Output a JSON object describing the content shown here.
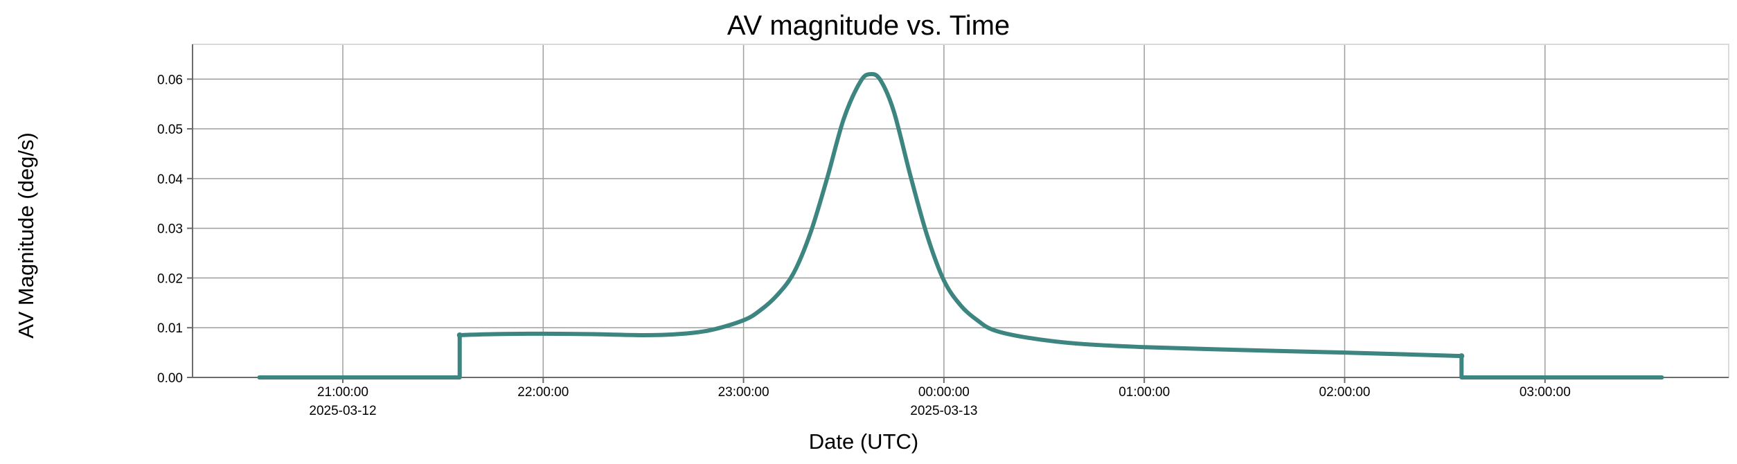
{
  "chart_data": {
    "type": "line",
    "title": "AV magnitude vs. Time",
    "xlabel": "Date (UTC)",
    "ylabel": "AV Magnitude (deg/s)",
    "xlim": [
      "2025-03-12T20:15:00",
      "2025-03-13T03:55:00"
    ],
    "ylim": [
      0,
      0.067
    ],
    "grid": true,
    "legend": "none",
    "x_ticks": [
      {
        "value": "2025-03-12T21:00:00",
        "label": "21:00:00",
        "sublabel": "2025-03-12"
      },
      {
        "value": "2025-03-12T22:00:00",
        "label": "22:00:00",
        "sublabel": ""
      },
      {
        "value": "2025-03-12T23:00:00",
        "label": "23:00:00",
        "sublabel": ""
      },
      {
        "value": "2025-03-13T00:00:00",
        "label": "00:00:00",
        "sublabel": "2025-03-13"
      },
      {
        "value": "2025-03-13T01:00:00",
        "label": "01:00:00",
        "sublabel": ""
      },
      {
        "value": "2025-03-13T02:00:00",
        "label": "02:00:00",
        "sublabel": ""
      },
      {
        "value": "2025-03-13T03:00:00",
        "label": "03:00:00",
        "sublabel": ""
      }
    ],
    "y_ticks": [
      {
        "value": 0.0,
        "label": "0.00"
      },
      {
        "value": 0.01,
        "label": "0.01"
      },
      {
        "value": 0.02,
        "label": "0.02"
      },
      {
        "value": 0.03,
        "label": "0.03"
      },
      {
        "value": 0.04,
        "label": "0.04"
      },
      {
        "value": 0.05,
        "label": "0.05"
      },
      {
        "value": 0.06,
        "label": "0.06"
      }
    ],
    "series": [
      {
        "color": "#3d8580",
        "points": [
          {
            "x": "2025-03-12T20:35:00",
            "y": 0.0
          },
          {
            "x": "2025-03-12T21:35:00",
            "y": 0.0
          },
          {
            "x": "2025-03-12T21:35:00",
            "y": 0.0085
          },
          {
            "x": "2025-03-12T21:45:00",
            "y": 0.0087
          },
          {
            "x": "2025-03-12T22:00:00",
            "y": 0.0088
          },
          {
            "x": "2025-03-12T22:15:00",
            "y": 0.0087
          },
          {
            "x": "2025-03-12T22:30:00",
            "y": 0.0085
          },
          {
            "x": "2025-03-12T22:40:00",
            "y": 0.0087
          },
          {
            "x": "2025-03-12T22:50:00",
            "y": 0.0095
          },
          {
            "x": "2025-03-12T23:00:00",
            "y": 0.0115
          },
          {
            "x": "2025-03-12T23:05:00",
            "y": 0.0135
          },
          {
            "x": "2025-03-12T23:10:00",
            "y": 0.0165
          },
          {
            "x": "2025-03-12T23:15:00",
            "y": 0.021
          },
          {
            "x": "2025-03-12T23:20:00",
            "y": 0.029
          },
          {
            "x": "2025-03-12T23:25:00",
            "y": 0.04
          },
          {
            "x": "2025-03-12T23:30:00",
            "y": 0.052
          },
          {
            "x": "2025-03-12T23:35:00",
            "y": 0.0595
          },
          {
            "x": "2025-03-12T23:38:00",
            "y": 0.061
          },
          {
            "x": "2025-03-12T23:41:00",
            "y": 0.0598
          },
          {
            "x": "2025-03-12T23:45:00",
            "y": 0.0535
          },
          {
            "x": "2025-03-12T23:50:00",
            "y": 0.0405
          },
          {
            "x": "2025-03-12T23:55:00",
            "y": 0.0285
          },
          {
            "x": "2025-03-13T00:00:00",
            "y": 0.0195
          },
          {
            "x": "2025-03-13T00:05:00",
            "y": 0.0145
          },
          {
            "x": "2025-03-13T00:10:00",
            "y": 0.0115
          },
          {
            "x": "2025-03-13T00:15:00",
            "y": 0.0095
          },
          {
            "x": "2025-03-13T00:25:00",
            "y": 0.008
          },
          {
            "x": "2025-03-13T00:40:00",
            "y": 0.0068
          },
          {
            "x": "2025-03-13T01:00:00",
            "y": 0.0061
          },
          {
            "x": "2025-03-13T01:30:00",
            "y": 0.0055
          },
          {
            "x": "2025-03-13T02:00:00",
            "y": 0.005
          },
          {
            "x": "2025-03-13T02:35:00",
            "y": 0.0043
          },
          {
            "x": "2025-03-13T02:35:00",
            "y": 0.0
          },
          {
            "x": "2025-03-13T03:35:00",
            "y": 0.0
          }
        ]
      }
    ]
  }
}
